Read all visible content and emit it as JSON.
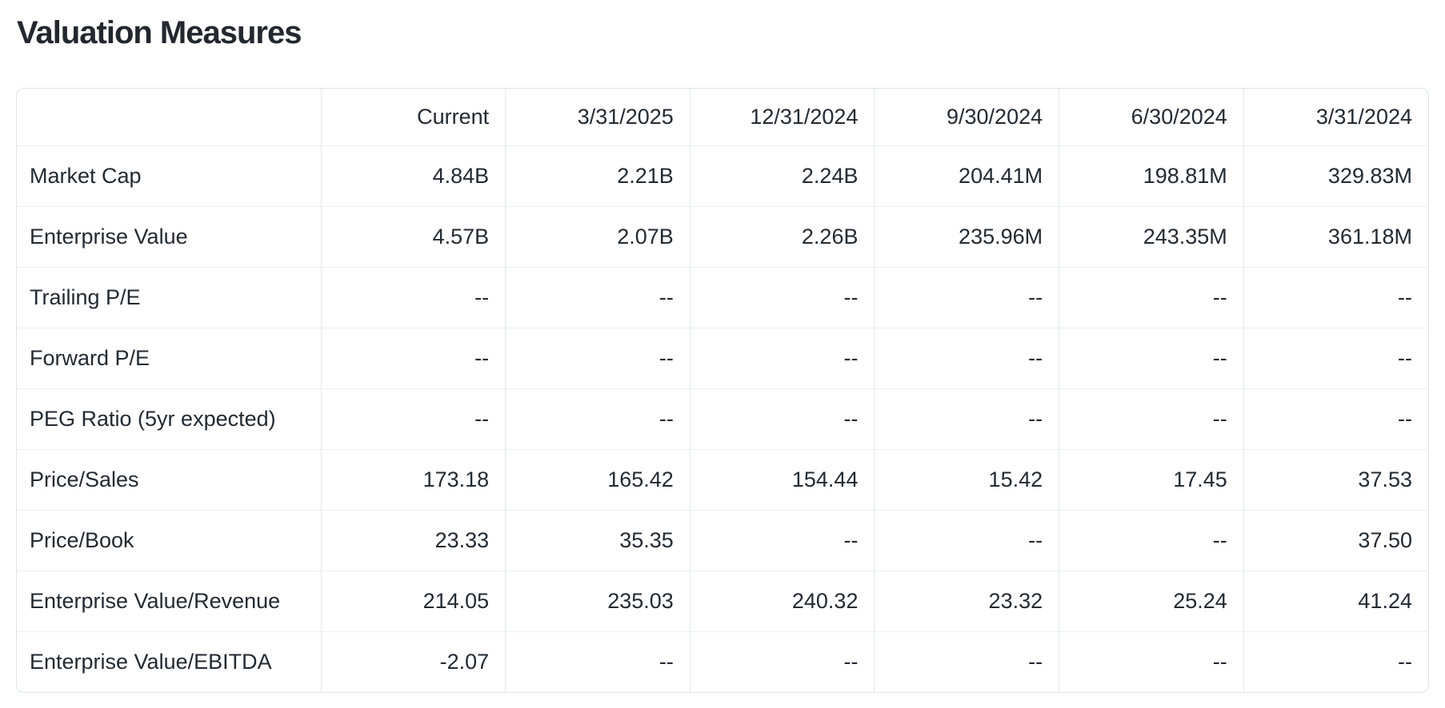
{
  "title": "Valuation Measures",
  "colors": {
    "text": "#232a31",
    "title": "#23272e",
    "outer_border": "#dde2e7",
    "grid_vertical": "#e4e8ec",
    "grid_horizontal": "#eceff2",
    "background": "#ffffff"
  },
  "table": {
    "columns": {
      "c0": "",
      "c1": "Current",
      "c2": "3/31/2025",
      "c3": "12/31/2024",
      "c4": "9/30/2024",
      "c5": "6/30/2024",
      "c6": "3/31/2024"
    },
    "rows": [
      {
        "label": "Market Cap",
        "values": [
          "4.84B",
          "2.21B",
          "2.24B",
          "204.41M",
          "198.81M",
          "329.83M"
        ]
      },
      {
        "label": "Enterprise Value",
        "values": [
          "4.57B",
          "2.07B",
          "2.26B",
          "235.96M",
          "243.35M",
          "361.18M"
        ]
      },
      {
        "label": "Trailing P/E",
        "values": [
          "--",
          "--",
          "--",
          "--",
          "--",
          "--"
        ]
      },
      {
        "label": "Forward P/E",
        "values": [
          "--",
          "--",
          "--",
          "--",
          "--",
          "--"
        ]
      },
      {
        "label": "PEG Ratio (5yr expected)",
        "values": [
          "--",
          "--",
          "--",
          "--",
          "--",
          "--"
        ]
      },
      {
        "label": "Price/Sales",
        "values": [
          "173.18",
          "165.42",
          "154.44",
          "15.42",
          "17.45",
          "37.53"
        ]
      },
      {
        "label": "Price/Book",
        "values": [
          "23.33",
          "35.35",
          "--",
          "--",
          "--",
          "37.50"
        ]
      },
      {
        "label": "Enterprise Value/Revenue",
        "values": [
          "214.05",
          "235.03",
          "240.32",
          "23.32",
          "25.24",
          "41.24"
        ]
      },
      {
        "label": "Enterprise Value/EBITDA",
        "values": [
          "-2.07",
          "--",
          "--",
          "--",
          "--",
          "--"
        ]
      }
    ]
  }
}
